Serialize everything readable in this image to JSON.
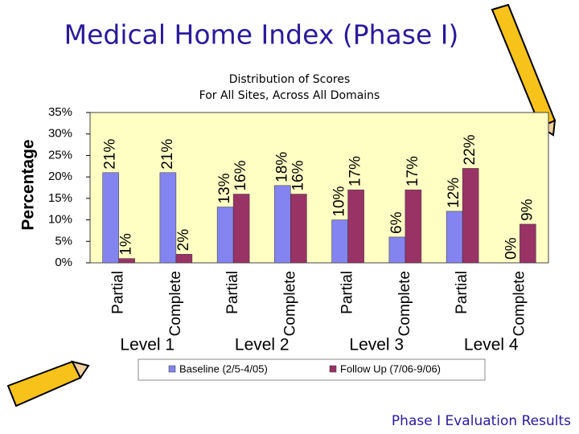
{
  "title": "Medical Home Index (Phase I)",
  "footer": "Phase I Evaluation Results",
  "chart_data": {
    "type": "bar",
    "title": "Distribution of Scores",
    "subtitle": "For All Sites, Across All Domains",
    "y_label": "Percentage",
    "categories": [
      "Partial",
      "Complete",
      "Partial",
      "Complete",
      "Partial",
      "Complete",
      "Partial",
      "Complete"
    ],
    "group_labels": [
      "Level 1",
      "Level 2",
      "Level 3",
      "Level 4"
    ],
    "series": [
      {
        "name": "Baseline (2/5-4/05)",
        "color": "#8484f0",
        "values": [
          21,
          21,
          13,
          18,
          10,
          6,
          12,
          0
        ],
        "value_labels": [
          "21%",
          "21%",
          "13%",
          "18%",
          "10%",
          "6%",
          "12%",
          "0%"
        ]
      },
      {
        "name": "Follow Up (7/06-9/06)",
        "color": "#993366",
        "values": [
          1,
          2,
          16,
          16,
          17,
          17,
          22,
          9
        ],
        "value_labels": [
          "1%",
          "2%",
          "16%",
          "16%",
          "17%",
          "17%",
          "22%",
          "9%"
        ]
      }
    ],
    "ylim": [
      0,
      35
    ],
    "yticks": [
      {
        "value": 0,
        "label": "0%"
      },
      {
        "value": 5,
        "label": "5%"
      },
      {
        "value": 10,
        "label": "10%"
      },
      {
        "value": 15,
        "label": "15%"
      },
      {
        "value": 20,
        "label": "20%"
      },
      {
        "value": 25,
        "label": "25%"
      },
      {
        "value": 30,
        "label": "30%"
      },
      {
        "value": 35,
        "label": "35%"
      }
    ],
    "grid": false,
    "legend": "bottom",
    "plot_background": "#ffffc4"
  }
}
